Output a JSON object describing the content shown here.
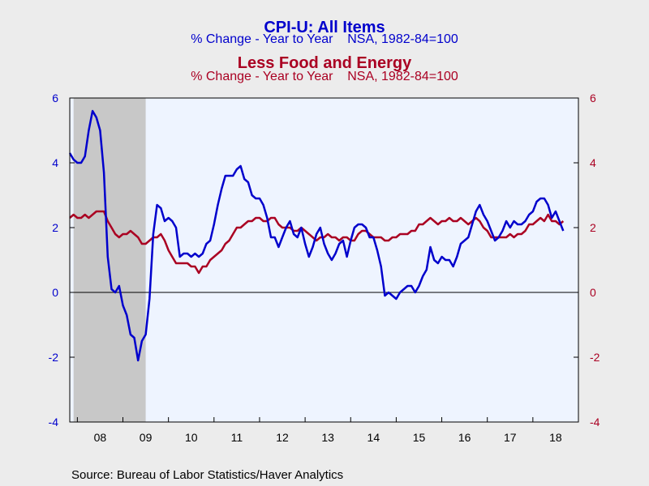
{
  "titles": {
    "line1": "CPI-U: All Items",
    "line2": "% Change - Year to Year    NSA, 1982-84=100",
    "line3": "Less Food and Energy",
    "line4": "% Change - Year to Year    NSA, 1982-84=100"
  },
  "source": "Source:  Bureau of Labor Statistics/Haver Analytics",
  "colors": {
    "plot_bg": "#eef4ff",
    "recession": "#c8c8c8",
    "series_blue": "#0000cc",
    "series_red": "#aa0022"
  },
  "chart_data": {
    "type": "line",
    "x_range": [
      "2007-11",
      "2019-01"
    ],
    "ylim": [
      -4,
      6
    ],
    "yticks": [
      -4,
      -2,
      0,
      2,
      4,
      6
    ],
    "ytick_labels": [
      "-4",
      "-2",
      "0",
      "2",
      "4",
      "6"
    ],
    "xtick_labels": [
      "08",
      "09",
      "10",
      "11",
      "12",
      "13",
      "14",
      "15",
      "16",
      "17",
      "18"
    ],
    "recession": {
      "start": "2007-12",
      "end": "2009-06"
    },
    "zero_line": true,
    "grid": false,
    "series": [
      {
        "name": "CPI-U: All Items",
        "color": "#0000cc",
        "start": "2007-11",
        "values": [
          4.3,
          4.1,
          4.0,
          4.0,
          4.2,
          5.0,
          5.6,
          5.4,
          5.0,
          3.7,
          1.1,
          0.1,
          0.0,
          0.2,
          -0.4,
          -0.7,
          -1.3,
          -1.4,
          -2.1,
          -1.5,
          -1.3,
          -0.2,
          1.8,
          2.7,
          2.6,
          2.2,
          2.3,
          2.2,
          2.0,
          1.1,
          1.2,
          1.2,
          1.1,
          1.2,
          1.1,
          1.2,
          1.5,
          1.6,
          2.1,
          2.7,
          3.2,
          3.6,
          3.6,
          3.6,
          3.8,
          3.9,
          3.5,
          3.4,
          3.0,
          2.9,
          2.9,
          2.7,
          2.3,
          1.7,
          1.7,
          1.4,
          1.7,
          2.0,
          2.2,
          1.8,
          1.7,
          2.0,
          1.5,
          1.1,
          1.4,
          1.8,
          2.0,
          1.5,
          1.2,
          1.0,
          1.2,
          1.5,
          1.6,
          1.1,
          1.6,
          2.0,
          2.1,
          2.1,
          2.0,
          1.7,
          1.7,
          1.3,
          0.8,
          -0.1,
          0.0,
          -0.1,
          -0.2,
          0.0,
          0.1,
          0.2,
          0.2,
          0.0,
          0.2,
          0.5,
          0.7,
          1.4,
          1.0,
          0.9,
          1.1,
          1.0,
          1.0,
          0.8,
          1.1,
          1.5,
          1.6,
          1.7,
          2.1,
          2.5,
          2.7,
          2.4,
          2.2,
          1.9,
          1.6,
          1.7,
          1.9,
          2.2,
          2.0,
          2.2,
          2.1,
          2.1,
          2.2,
          2.4,
          2.5,
          2.8,
          2.9,
          2.9,
          2.7,
          2.3,
          2.5,
          2.2,
          1.9
        ]
      },
      {
        "name": "Less Food and Energy",
        "color": "#aa0022",
        "start": "2007-11",
        "values": [
          2.3,
          2.4,
          2.3,
          2.3,
          2.4,
          2.3,
          2.4,
          2.5,
          2.5,
          2.5,
          2.2,
          2.0,
          1.8,
          1.7,
          1.8,
          1.8,
          1.9,
          1.8,
          1.7,
          1.5,
          1.5,
          1.6,
          1.7,
          1.7,
          1.8,
          1.6,
          1.3,
          1.1,
          0.9,
          0.9,
          0.9,
          0.9,
          0.8,
          0.8,
          0.6,
          0.8,
          0.8,
          1.0,
          1.1,
          1.2,
          1.3,
          1.5,
          1.6,
          1.8,
          2.0,
          2.0,
          2.1,
          2.2,
          2.2,
          2.3,
          2.3,
          2.2,
          2.2,
          2.3,
          2.3,
          2.1,
          2.0,
          2.0,
          2.0,
          1.9,
          1.9,
          2.0,
          1.9,
          1.8,
          1.7,
          1.6,
          1.7,
          1.7,
          1.8,
          1.7,
          1.7,
          1.6,
          1.7,
          1.7,
          1.6,
          1.6,
          1.8,
          1.9,
          1.9,
          1.8,
          1.7,
          1.7,
          1.7,
          1.6,
          1.6,
          1.7,
          1.7,
          1.8,
          1.8,
          1.8,
          1.9,
          1.9,
          2.1,
          2.1,
          2.2,
          2.3,
          2.2,
          2.1,
          2.2,
          2.2,
          2.3,
          2.2,
          2.2,
          2.3,
          2.2,
          2.1,
          2.2,
          2.3,
          2.2,
          2.0,
          1.9,
          1.7,
          1.7,
          1.7,
          1.7,
          1.7,
          1.8,
          1.7,
          1.8,
          1.8,
          1.9,
          2.1,
          2.1,
          2.2,
          2.3,
          2.2,
          2.4,
          2.2,
          2.2,
          2.1,
          2.2
        ]
      }
    ]
  }
}
